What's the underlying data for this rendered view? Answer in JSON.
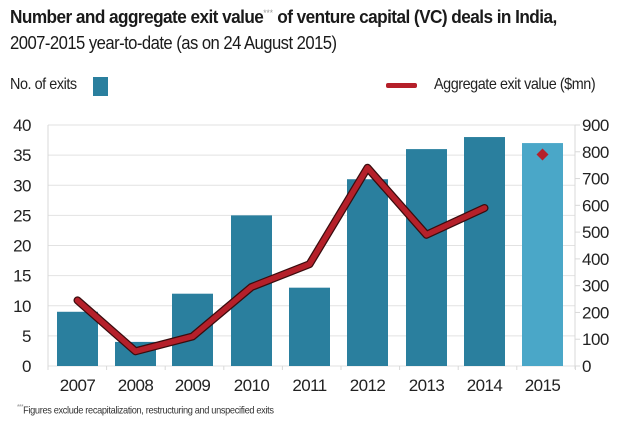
{
  "title_main": "Number and aggregate exit value",
  "title_marker": "***",
  "title_rest": " of venture capital (VC) deals in India,",
  "subtitle": "2007-2015 year-to-date (as on 24 August 2015)",
  "legend": {
    "bars_label": "No. of exits",
    "line_label": "Aggregate exit value ($mn)"
  },
  "footnote_marker": "***",
  "footnote": "Figures exclude recapitalization, restructuring and unspecified exits",
  "colors": {
    "bar": "#2a7f9e",
    "bar_highlight": "#4aa7c8",
    "line": "#b5202a",
    "line_outline": "#3a0c0e",
    "grid": "#e2e2e2",
    "text": "#1a1a1a"
  },
  "chart_data": {
    "type": "bar",
    "title": "Number and aggregate exit value*** of venture capital (VC) deals in India, 2007-2015 year-to-date (as on 24 August 2015)",
    "categories": [
      "2007",
      "2008",
      "2009",
      "2010",
      "2011",
      "2012",
      "2013",
      "2014",
      "2015"
    ],
    "series": [
      {
        "name": "No. of exits",
        "type": "bar",
        "axis": "left",
        "values": [
          9,
          4,
          12,
          25,
          13,
          31,
          36,
          38,
          37
        ]
      },
      {
        "name": "Aggregate exit value ($mn)",
        "type": "line",
        "axis": "right",
        "values": [
          245,
          55,
          110,
          295,
          380,
          740,
          490,
          590,
          null
        ]
      },
      {
        "name": "Aggregate exit value ($mn) 2015 YTD",
        "type": "marker",
        "axis": "right",
        "values": [
          null,
          null,
          null,
          null,
          null,
          null,
          null,
          null,
          790
        ]
      }
    ],
    "highlight_category": "2015",
    "ylim_left": [
      0,
      40
    ],
    "yticks_left": [
      "0",
      "5",
      "10",
      "15",
      "20",
      "25",
      "30",
      "35",
      "40"
    ],
    "ylim_right": [
      0,
      900
    ],
    "yticks_right": [
      "0",
      "100",
      "200",
      "300",
      "400",
      "500",
      "600",
      "700",
      "800",
      "900"
    ],
    "xlabel": "",
    "ylabel_left": "",
    "ylabel_right": "",
    "grid": true,
    "legend_position": "top"
  }
}
